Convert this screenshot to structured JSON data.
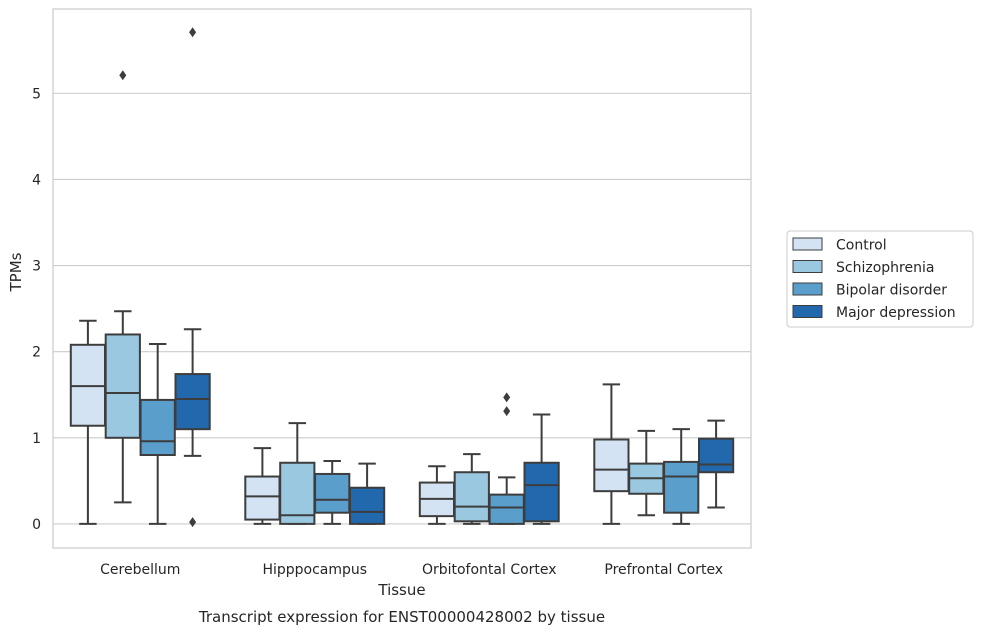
{
  "chart_data": {
    "type": "box",
    "caption": "Transcript expression for ENST00000428002 by tissue",
    "xlabel": "Tissue",
    "ylabel": "TPMs",
    "ylim": [
      -0.28,
      5.98
    ],
    "yticks": [
      0,
      1,
      2,
      3,
      4,
      5
    ],
    "grid": "horizontal",
    "legend_position": "right",
    "categories": [
      "Cerebellum",
      "Hipppocampus",
      "Orbitofontal Cortex",
      "Prefrontal Cortex"
    ],
    "series": [
      {
        "name": "Control",
        "color": "#d3e3f3",
        "boxes": [
          {
            "whisker_low": 0.0,
            "q1": 1.14,
            "median": 1.6,
            "q3": 2.08,
            "whisker_high": 2.36,
            "outliers": []
          },
          {
            "whisker_low": 0.0,
            "q1": 0.05,
            "median": 0.32,
            "q3": 0.55,
            "whisker_high": 0.88,
            "outliers": []
          },
          {
            "whisker_low": 0.0,
            "q1": 0.09,
            "median": 0.29,
            "q3": 0.48,
            "whisker_high": 0.67,
            "outliers": []
          },
          {
            "whisker_low": 0.0,
            "q1": 0.38,
            "median": 0.63,
            "q3": 0.98,
            "whisker_high": 1.62,
            "outliers": []
          }
        ]
      },
      {
        "name": "Schizophrenia",
        "color": "#9ac8e0",
        "boxes": [
          {
            "whisker_low": 0.25,
            "q1": 1.0,
            "median": 1.52,
            "q3": 2.2,
            "whisker_high": 2.47,
            "outliers": [
              5.21
            ]
          },
          {
            "whisker_low": 0.0,
            "q1": 0.0,
            "median": 0.1,
            "q3": 0.71,
            "whisker_high": 1.17,
            "outliers": []
          },
          {
            "whisker_low": 0.0,
            "q1": 0.03,
            "median": 0.2,
            "q3": 0.6,
            "whisker_high": 0.81,
            "outliers": []
          },
          {
            "whisker_low": 0.1,
            "q1": 0.35,
            "median": 0.53,
            "q3": 0.7,
            "whisker_high": 1.08,
            "outliers": []
          }
        ]
      },
      {
        "name": "Bipolar disorder",
        "color": "#5a9fcc",
        "boxes": [
          {
            "whisker_low": 0.0,
            "q1": 0.8,
            "median": 0.96,
            "q3": 1.44,
            "whisker_high": 2.09,
            "outliers": []
          },
          {
            "whisker_low": 0.0,
            "q1": 0.13,
            "median": 0.28,
            "q3": 0.58,
            "whisker_high": 0.73,
            "outliers": []
          },
          {
            "whisker_low": 0.0,
            "q1": 0.0,
            "median": 0.19,
            "q3": 0.34,
            "whisker_high": 0.54,
            "outliers": [
              1.31,
              1.47
            ]
          },
          {
            "whisker_low": 0.0,
            "q1": 0.13,
            "median": 0.55,
            "q3": 0.72,
            "whisker_high": 1.1,
            "outliers": []
          }
        ]
      },
      {
        "name": "Major depression",
        "color": "#2268ad",
        "boxes": [
          {
            "whisker_low": 0.79,
            "q1": 1.1,
            "median": 1.45,
            "q3": 1.74,
            "whisker_high": 2.26,
            "outliers": [
              5.71,
              0.02
            ]
          },
          {
            "whisker_low": 0.0,
            "q1": 0.0,
            "median": 0.14,
            "q3": 0.42,
            "whisker_high": 0.7,
            "outliers": []
          },
          {
            "whisker_low": 0.0,
            "q1": 0.03,
            "median": 0.45,
            "q3": 0.71,
            "whisker_high": 1.27,
            "outliers": []
          },
          {
            "whisker_low": 0.19,
            "q1": 0.6,
            "median": 0.69,
            "q3": 0.99,
            "whisker_high": 1.2,
            "outliers": []
          }
        ]
      }
    ]
  }
}
